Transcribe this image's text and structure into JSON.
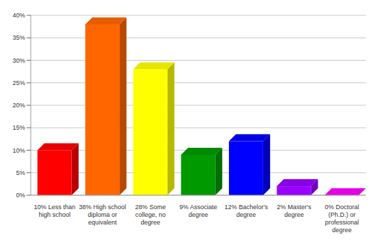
{
  "chart_data": {
    "type": "bar",
    "categories": [
      "10% Less than high school",
      "38% High school diploma or equivalent",
      "28% Some college, no degree",
      "9% Associate degree",
      "12% Bachelor's degree",
      "2% Master's degree",
      "0% Doctoral (Ph.D.) or professional degree"
    ],
    "values": [
      10,
      38,
      28,
      9,
      12,
      2,
      0
    ],
    "colors": [
      "#ff0000",
      "#ff6600",
      "#ffff00",
      "#009900",
      "#0000ff",
      "#9900ff",
      "#ff00ff"
    ],
    "ylim": [
      0,
      40
    ],
    "yticks": [
      {
        "value": 0,
        "label": "0%"
      },
      {
        "value": 5,
        "label": "5%"
      },
      {
        "value": 10,
        "label": "10%"
      },
      {
        "value": 15,
        "label": "15%"
      },
      {
        "value": 20,
        "label": "20%"
      },
      {
        "value": 25,
        "label": "25%"
      },
      {
        "value": 30,
        "label": "30%"
      },
      {
        "value": 35,
        "label": "35%"
      },
      {
        "value": 40,
        "label": "40%"
      }
    ],
    "grid": true
  }
}
